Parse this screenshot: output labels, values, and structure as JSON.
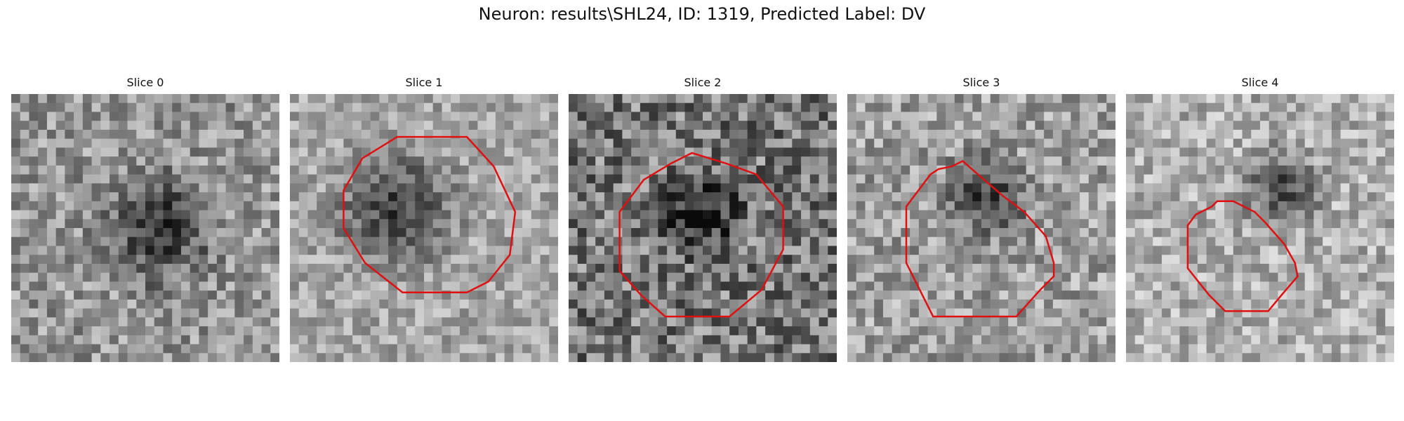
{
  "figure": {
    "title": "Neuron: results\\SHL24, ID: 1319, Predicted Label: DV",
    "contour_color": "#e01010"
  },
  "panels": [
    {
      "title": "Slice 0",
      "has_contour": false,
      "dark_blob": [
        0.55,
        0.5,
        0.28
      ],
      "base": 150,
      "noise": 55
    },
    {
      "title": "Slice 1",
      "has_contour": true,
      "dark_blob": [
        0.4,
        0.43,
        0.3
      ],
      "base": 165,
      "noise": 45,
      "contour": [
        [
          0.4,
          0.16
        ],
        [
          0.66,
          0.16
        ],
        [
          0.76,
          0.27
        ],
        [
          0.84,
          0.44
        ],
        [
          0.82,
          0.6
        ],
        [
          0.74,
          0.7
        ],
        [
          0.66,
          0.74
        ],
        [
          0.42,
          0.74
        ],
        [
          0.28,
          0.63
        ],
        [
          0.2,
          0.5
        ],
        [
          0.2,
          0.36
        ],
        [
          0.27,
          0.24
        ]
      ]
    },
    {
      "title": "Slice 2",
      "has_contour": true,
      "dark_blob": [
        0.5,
        0.45,
        0.2
      ],
      "base": 120,
      "noise": 70,
      "contour": [
        [
          0.38,
          0.26
        ],
        [
          0.46,
          0.22
        ],
        [
          0.59,
          0.26
        ],
        [
          0.7,
          0.3
        ],
        [
          0.8,
          0.42
        ],
        [
          0.8,
          0.58
        ],
        [
          0.72,
          0.73
        ],
        [
          0.6,
          0.83
        ],
        [
          0.36,
          0.83
        ],
        [
          0.27,
          0.75
        ],
        [
          0.19,
          0.66
        ],
        [
          0.19,
          0.44
        ],
        [
          0.28,
          0.32
        ]
      ]
    },
    {
      "title": "Slice 3",
      "has_contour": true,
      "dark_blob": [
        0.52,
        0.38,
        0.22
      ],
      "base": 160,
      "noise": 55,
      "contour": [
        [
          0.22,
          0.42
        ],
        [
          0.31,
          0.3
        ],
        [
          0.34,
          0.28
        ],
        [
          0.39,
          0.27
        ],
        [
          0.43,
          0.25
        ],
        [
          0.51,
          0.32
        ],
        [
          0.58,
          0.38
        ],
        [
          0.66,
          0.44
        ],
        [
          0.74,
          0.53
        ],
        [
          0.77,
          0.63
        ],
        [
          0.77,
          0.68
        ],
        [
          0.72,
          0.73
        ],
        [
          0.63,
          0.83
        ],
        [
          0.32,
          0.83
        ],
        [
          0.22,
          0.63
        ]
      ]
    },
    {
      "title": "Slice 4",
      "has_contour": true,
      "dark_blob": [
        0.58,
        0.35,
        0.2
      ],
      "base": 175,
      "noise": 50,
      "contour": [
        [
          0.26,
          0.45
        ],
        [
          0.32,
          0.42
        ],
        [
          0.34,
          0.4
        ],
        [
          0.4,
          0.4
        ],
        [
          0.48,
          0.44
        ],
        [
          0.52,
          0.48
        ],
        [
          0.59,
          0.56
        ],
        [
          0.63,
          0.63
        ],
        [
          0.64,
          0.68
        ],
        [
          0.58,
          0.75
        ],
        [
          0.53,
          0.81
        ],
        [
          0.37,
          0.81
        ],
        [
          0.31,
          0.75
        ],
        [
          0.23,
          0.65
        ],
        [
          0.23,
          0.49
        ]
      ]
    }
  ]
}
